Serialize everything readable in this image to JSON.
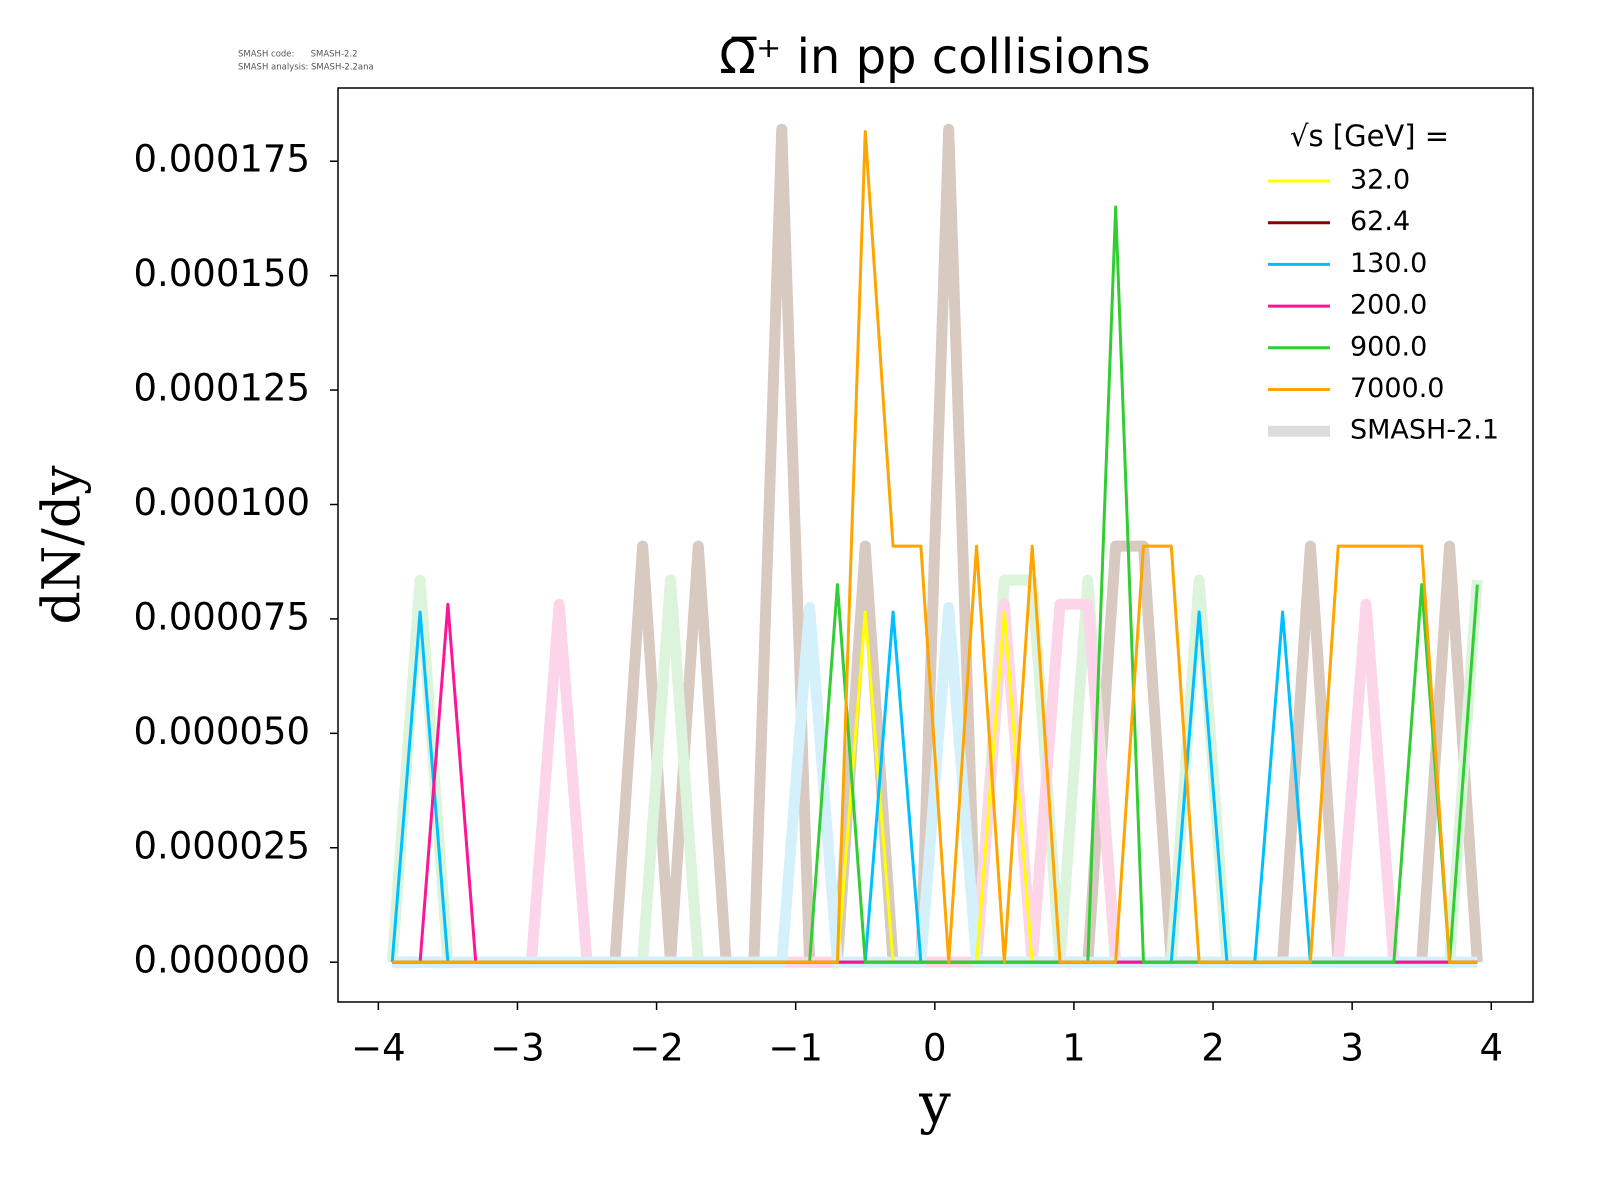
{
  "chart_data": {
    "type": "line",
    "title": "Ω̅⁺ in pp collisions",
    "notes": [
      "SMASH code:      SMASH-2.2",
      "SMASH analysis: SMASH-2.2ana"
    ],
    "xlabel": "y",
    "ylabel": "dN/dy",
    "legend_title": "√s  [GeV] =",
    "legend": "upper right",
    "x": [
      -3.9,
      -3.7,
      -3.5,
      -3.3,
      -3.1,
      -2.9,
      -2.7,
      -2.5,
      -2.3,
      -2.1,
      -1.9,
      -1.7,
      -1.5,
      -1.3,
      -1.1,
      -0.9,
      -0.7,
      -0.5,
      -0.3,
      -0.1,
      0.1,
      0.3,
      0.5,
      0.7,
      0.9,
      1.1,
      1.3,
      1.5,
      1.7,
      1.9,
      2.1,
      2.3,
      2.5,
      2.7,
      2.9,
      3.1,
      3.3,
      3.5,
      3.7,
      3.9
    ],
    "reference": {
      "name": "SMASH-2.1",
      "color": "#dddddd",
      "lines": [
        {
          "color": "#d8c9c1",
          "values": [
            0,
            0,
            0,
            0,
            0,
            0,
            0,
            0,
            0,
            9.09e-05,
            0,
            9.09e-05,
            0,
            0,
            0.000182,
            0,
            0,
            9.09e-05,
            0,
            0,
            0.000182,
            0,
            0,
            0,
            0,
            0,
            9.09e-05,
            9.09e-05,
            0,
            0,
            0,
            0,
            0,
            9.09e-05,
            0,
            0,
            0,
            0,
            9.09e-05,
            0
          ]
        },
        {
          "color": "#dcf4dc",
          "values": [
            0,
            8.35e-05,
            0,
            0,
            0,
            0,
            0,
            0,
            0,
            0,
            8.35e-05,
            0,
            0,
            0,
            0,
            0,
            0,
            0,
            0,
            0,
            0,
            0,
            8.35e-05,
            8.35e-05,
            0,
            8.35e-05,
            0,
            0,
            0,
            8.35e-05,
            0,
            0,
            0,
            0,
            0,
            0,
            0,
            0,
            0,
            8.35e-05
          ]
        },
        {
          "color": "#fcd6e8",
          "values": [
            0,
            0,
            0,
            0,
            0,
            0,
            7.82e-05,
            0,
            0,
            0,
            0,
            0,
            0,
            0,
            0,
            0,
            0,
            0,
            0,
            0,
            0,
            0,
            7.82e-05,
            0,
            7.82e-05,
            7.82e-05,
            0,
            0,
            0,
            0,
            0,
            0,
            0,
            0,
            0,
            7.82e-05,
            0,
            0,
            0,
            0
          ]
        },
        {
          "color": "#d4f1fb",
          "values": [
            0,
            0,
            0,
            0,
            0,
            0,
            0,
            0,
            0,
            0,
            0,
            0,
            0,
            0,
            0,
            7.75e-05,
            0,
            0,
            0,
            0,
            7.75e-05,
            0,
            0,
            0,
            0,
            0,
            0,
            0,
            0,
            0,
            0,
            0,
            0,
            0,
            0,
            0,
            0,
            0,
            0,
            0
          ]
        }
      ]
    },
    "series": [
      {
        "name": "32.0",
        "color": "#ffff00",
        "values": [
          0,
          0,
          0,
          0,
          0,
          0,
          0,
          0,
          0,
          0,
          0,
          0,
          0,
          0,
          0,
          0,
          0,
          7.65e-05,
          0,
          0,
          0,
          0,
          7.65e-05,
          0,
          0,
          0,
          0,
          0,
          0,
          0,
          0,
          0,
          0,
          0,
          0,
          0,
          0,
          0,
          0,
          0
        ]
      },
      {
        "name": "62.4",
        "color": "#8b0000",
        "values": [
          0,
          0,
          0,
          0,
          0,
          0,
          0,
          0,
          0,
          0,
          0,
          0,
          0,
          0,
          0,
          0,
          0,
          0,
          0,
          0,
          0,
          0,
          0,
          0,
          0,
          0,
          0,
          0,
          0,
          0,
          0,
          0,
          0,
          0,
          0,
          0,
          0,
          0,
          0,
          0
        ]
      },
      {
        "name": "130.0",
        "color": "#00bfff",
        "values": [
          0,
          7.65e-05,
          0,
          0,
          0,
          0,
          0,
          0,
          0,
          0,
          0,
          0,
          0,
          0,
          0,
          0,
          0,
          0,
          7.65e-05,
          0,
          0,
          0,
          0,
          0,
          0,
          0,
          0,
          0,
          0,
          7.65e-05,
          0,
          0,
          7.65e-05,
          0,
          0,
          0,
          0,
          0,
          0,
          0
        ]
      },
      {
        "name": "200.0",
        "color": "#ff1493",
        "values": [
          0,
          0,
          7.82e-05,
          0,
          0,
          0,
          0,
          0,
          0,
          0,
          0,
          0,
          0,
          0,
          0,
          0,
          0,
          0,
          0,
          0,
          0,
          0,
          0,
          0,
          0,
          0,
          0,
          0,
          0,
          0,
          0,
          0,
          0,
          0,
          0,
          0,
          0,
          0,
          0,
          0
        ]
      },
      {
        "name": "900.0",
        "color": "#32cd32",
        "values": [
          0,
          0,
          0,
          0,
          0,
          0,
          0,
          0,
          0,
          0,
          0,
          0,
          0,
          0,
          0,
          0,
          8.25e-05,
          0,
          0,
          0,
          0,
          0,
          0,
          0,
          0,
          0,
          0.000165,
          0,
          0,
          0,
          0,
          0,
          0,
          0,
          0,
          0,
          0,
          8.25e-05,
          0,
          8.25e-05
        ]
      },
      {
        "name": "7000.0",
        "color": "#ffa500",
        "values": [
          0,
          0,
          0,
          0,
          0,
          0,
          0,
          0,
          0,
          0,
          0,
          0,
          0,
          0,
          0,
          0,
          0,
          0.0001815,
          9.09e-05,
          9.09e-05,
          0,
          9.09e-05,
          0,
          9.09e-05,
          0,
          0,
          0,
          9.09e-05,
          9.09e-05,
          0,
          0,
          0,
          0,
          0,
          9.09e-05,
          9.09e-05,
          9.09e-05,
          9.09e-05,
          0,
          0
        ]
      }
    ],
    "xlim": [
      -4.29,
      4.3
    ],
    "ylim": [
      -8.7e-06,
      0.000191
    ],
    "xticks": [
      {
        "value": -4,
        "label": "−4"
      },
      {
        "value": -3,
        "label": "−3"
      },
      {
        "value": -2,
        "label": "−2"
      },
      {
        "value": -1,
        "label": "−1"
      },
      0,
      1,
      2,
      3,
      4
    ],
    "yticks": [
      {
        "value": 0,
        "label": "0.000000"
      },
      {
        "value": 2.5e-05,
        "label": "0.000025"
      },
      {
        "value": 5e-05,
        "label": "0.000050"
      },
      {
        "value": 7.5e-05,
        "label": "0.000075"
      },
      {
        "value": 0.0001,
        "label": "0.000100"
      },
      {
        "value": 0.000125,
        "label": "0.000125"
      },
      {
        "value": 0.00015,
        "label": "0.000150"
      },
      {
        "value": 0.000175,
        "label": "0.000175"
      }
    ]
  }
}
